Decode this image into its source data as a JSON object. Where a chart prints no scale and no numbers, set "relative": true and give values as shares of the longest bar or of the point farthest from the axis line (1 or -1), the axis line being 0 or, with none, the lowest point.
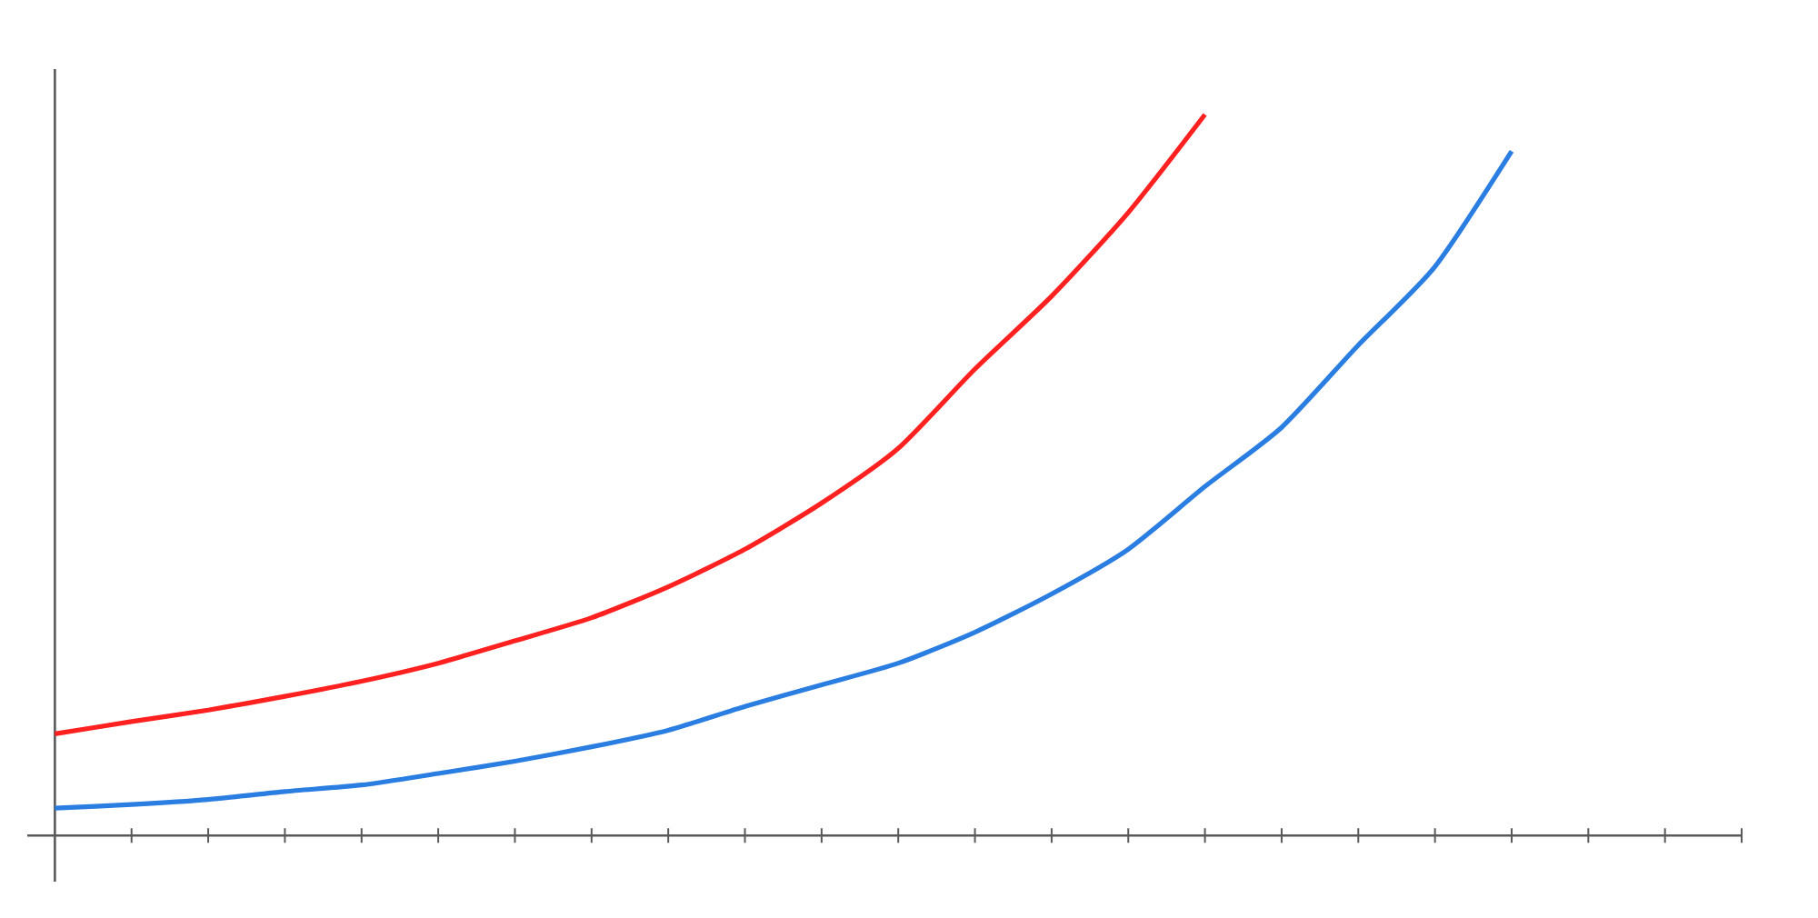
{
  "chart_data": {
    "type": "line",
    "relative": true,
    "categories": [
      null,
      null,
      null,
      null,
      null,
      null,
      null,
      null,
      null,
      null,
      null,
      null,
      null,
      null,
      null,
      null,
      null,
      null,
      null,
      null,
      null,
      null,
      null
    ],
    "series": [
      {
        "color": "#ff2020",
        "values": [
          0.141,
          0.158,
          0.174,
          0.193,
          0.214,
          0.239,
          0.27,
          0.302,
          0.345,
          0.397,
          0.461,
          0.537,
          0.647,
          0.748,
          0.864,
          1,
          null,
          null,
          null,
          null,
          null,
          null,
          null
        ]
      },
      {
        "color": "#2a7de1",
        "values": [
          0.038,
          0.043,
          0.05,
          0.061,
          0.07,
          0.086,
          0.103,
          0.123,
          0.146,
          0.179,
          0.209,
          0.239,
          0.282,
          0.335,
          0.397,
          0.484,
          0.566,
          0.68,
          0.789,
          0.949,
          null,
          null,
          null
        ]
      }
    ],
    "marker": "none",
    "line_style": "solid"
  }
}
